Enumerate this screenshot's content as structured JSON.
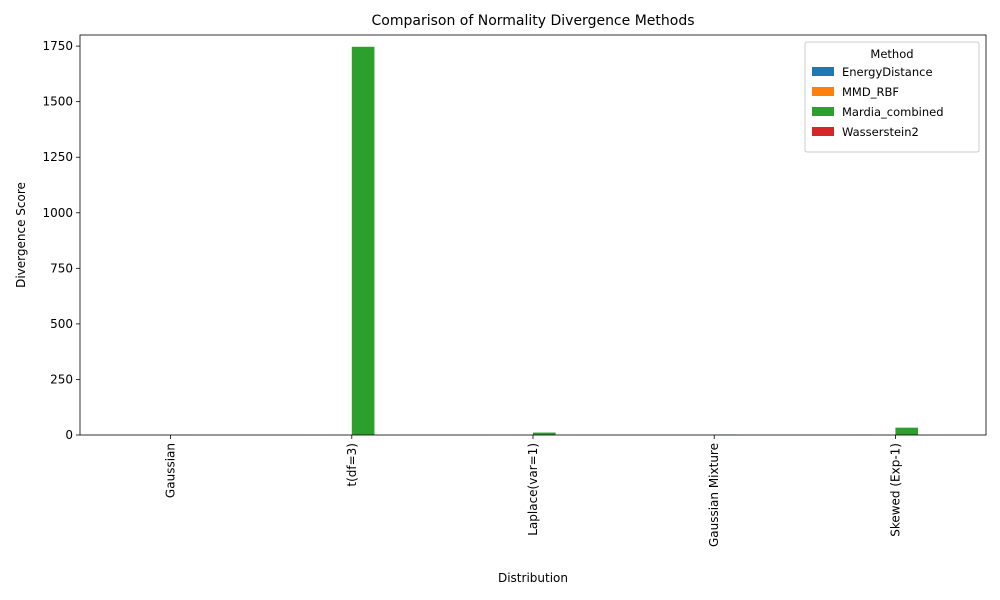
{
  "chart_data": {
    "type": "bar",
    "title": "Comparison of Normality Divergence Methods",
    "xlabel": "Distribution",
    "ylabel": "Divergence Score",
    "categories": [
      "Gaussian",
      "t(df=3)",
      "Laplace(var=1)",
      "Gaussian Mixture",
      "Skewed (Exp-1)"
    ],
    "series": [
      {
        "name": "EnergyDistance",
        "color": "#1f77b4",
        "values": [
          0.01,
          0.3,
          0.1,
          0.05,
          0.5
        ]
      },
      {
        "name": "MMD_RBF",
        "color": "#ff7f0e",
        "values": [
          0.001,
          0.05,
          0.01,
          0.01,
          0.1
        ]
      },
      {
        "name": "Mardia_combined",
        "color": "#2ca02c",
        "values": [
          0.5,
          1747,
          11,
          1.5,
          33
        ]
      },
      {
        "name": "Wasserstein2",
        "color": "#d62728",
        "values": [
          0.01,
          0.4,
          0.1,
          0.1,
          0.4
        ]
      }
    ],
    "ylim": [
      0,
      1800
    ],
    "yticks": [
      0,
      250,
      500,
      750,
      1000,
      1250,
      1500,
      1750
    ],
    "legend": {
      "title": "Method",
      "position": "top-right"
    },
    "grid": false
  }
}
